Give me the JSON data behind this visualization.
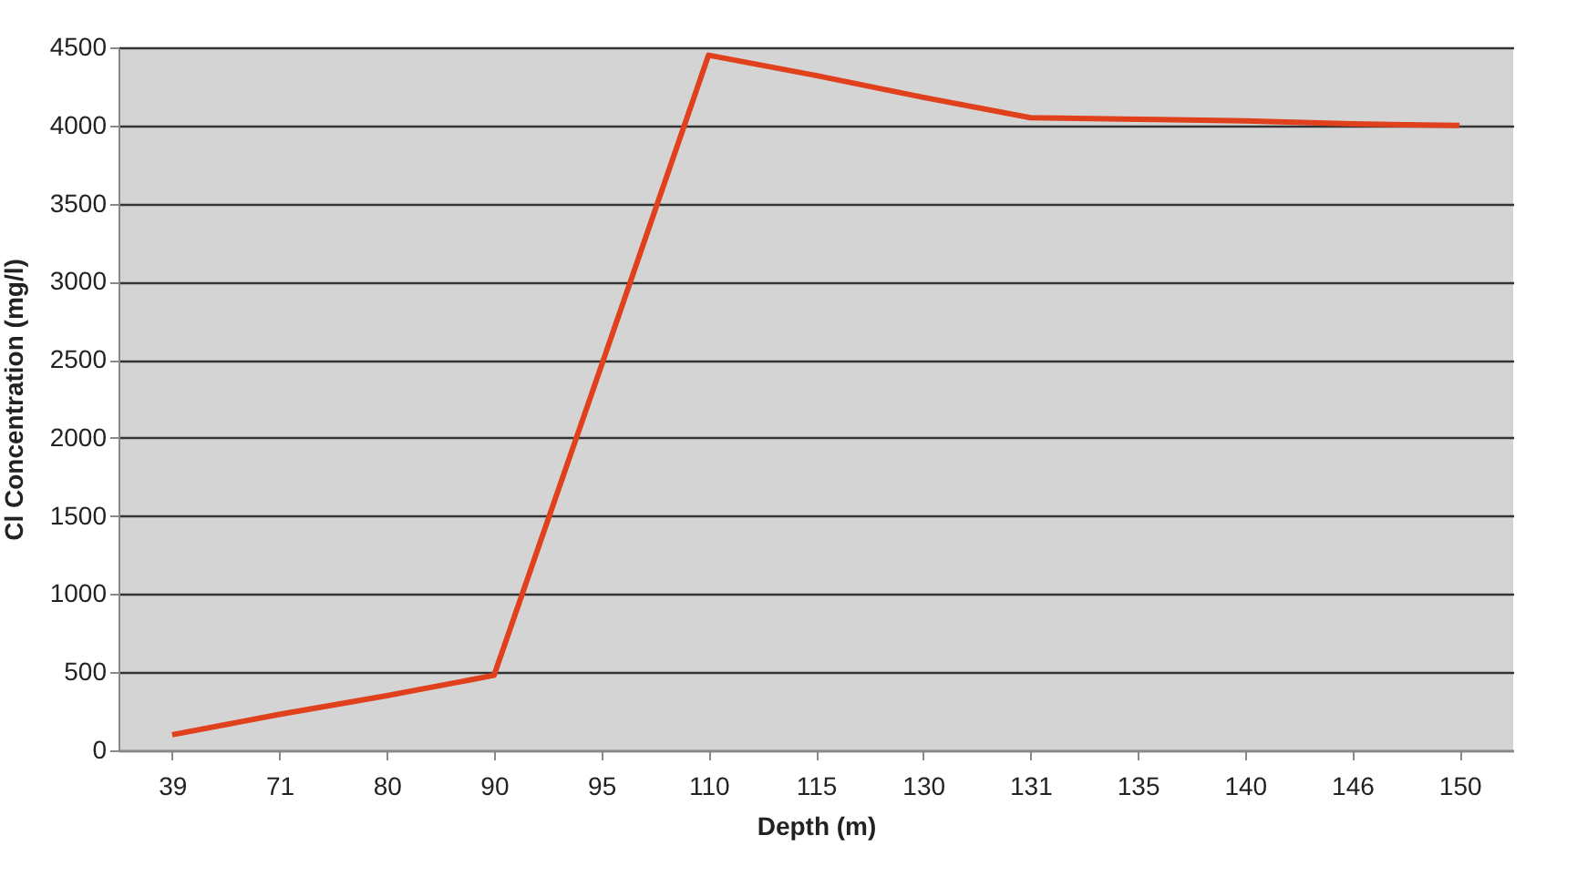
{
  "chart_data": {
    "type": "line",
    "xlabel": "Depth (m)",
    "ylabel": "Cl Concentration (mg/l)",
    "categories": [
      "39",
      "71",
      "80",
      "90",
      "95",
      "110",
      "115",
      "130",
      "131",
      "135",
      "140",
      "146",
      "150"
    ],
    "series": [
      {
        "color": "#e0401c",
        "values": [
          100,
          230,
          350,
          480,
          2460,
          4450,
          4320,
          4180,
          4050,
          4040,
          4030,
          4010,
          4000
        ]
      }
    ],
    "ylim": [
      0,
      4500
    ],
    "yticks": [
      0,
      500,
      1000,
      1500,
      2000,
      2500,
      3000,
      3500,
      4000,
      4500
    ],
    "grid": "y",
    "legend": false,
    "marker": "none",
    "line_style": "solid"
  }
}
